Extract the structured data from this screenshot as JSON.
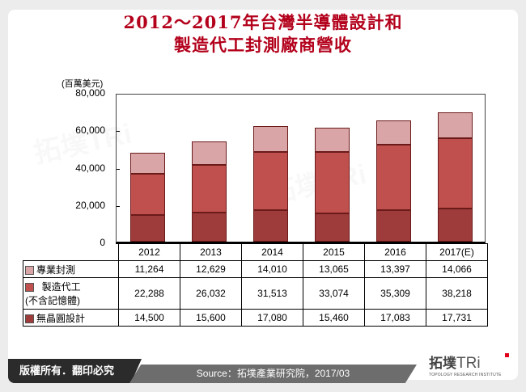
{
  "title": {
    "line1": "2012～2017年台灣半導體設計和",
    "line2": "製造代工封測廠商營收"
  },
  "chart_data": {
    "type": "bar",
    "stacked": true,
    "title": "2012～2017年台灣半導體設計和製造代工封測廠商營收",
    "ylabel": "(百萬美元)",
    "xlabel": "",
    "ylim": [
      0,
      80000
    ],
    "yticks": [
      "80,000",
      "60,000",
      "40,000",
      "20,000",
      "0"
    ],
    "categories": [
      "2012",
      "2013",
      "2014",
      "2015",
      "2016",
      "2017(E)"
    ],
    "series": [
      {
        "name": "無晶圓設計",
        "color": "#9e3b3b",
        "values": [
          14500,
          15600,
          17080,
          15460,
          17083,
          17731
        ],
        "labels": [
          "14,500",
          "15,600",
          "17,080",
          "15,460",
          "17,083",
          "17,731"
        ]
      },
      {
        "name": "製造代工(不含記憶體)",
        "color": "#c0504d",
        "values": [
          22288,
          26032,
          31513,
          33074,
          35309,
          38218
        ],
        "labels": [
          "22,288",
          "26,032",
          "31,513",
          "33,074",
          "35,309",
          "38,218"
        ]
      },
      {
        "name": "專業封測",
        "color": "#d9a5a6",
        "values": [
          11264,
          12629,
          14010,
          13065,
          13397,
          14066
        ],
        "labels": [
          "11,264",
          "12,629",
          "14,010",
          "13,065",
          "13,397",
          "14,066"
        ]
      }
    ],
    "grid": false,
    "legend_position": "data-table"
  },
  "table": {
    "rows": [
      {
        "label": "專業封測",
        "label2": ""
      },
      {
        "label": "製造代工",
        "label2": "(不含記憶體)"
      },
      {
        "label": "無晶圓設計",
        "label2": ""
      }
    ]
  },
  "footer": {
    "copyright": "版權所有．翻印必究",
    "source": "Source：拓墣產業研究院，2017/03",
    "logo_name": "拓墣",
    "logo_tri": "TRi",
    "logo_sub": "TOPOLOGY RESEARCH INSTITUTE"
  }
}
